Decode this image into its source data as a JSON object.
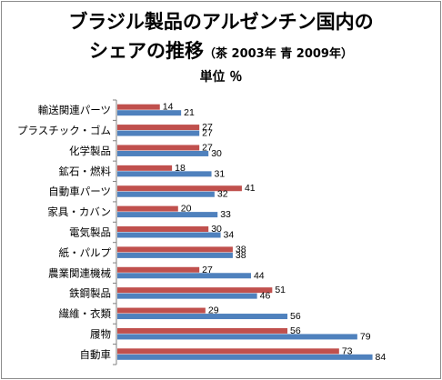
{
  "chart_data": {
    "type": "bar",
    "orientation": "horizontal",
    "title_line1": "ブラジル製品のアルゼンチン国内の",
    "title_line2": "シェアの推移",
    "title_note": "（茶  2003年  青  2009年）",
    "unit": "単位  ％",
    "categories": [
      "輸送関連パーツ",
      "プラスチック・ゴム",
      "化学製品",
      "鉱石・燃料",
      "自動車パーツ",
      "家具・カバン",
      "電気製品",
      "紙・パルプ",
      "農業関連機械",
      "鉄鋼製品",
      "繊維・衣類",
      "履物",
      "自動車"
    ],
    "series": [
      {
        "name": "2003年",
        "color": "#c0504d",
        "values": [
          14,
          27,
          27,
          18,
          41,
          20,
          30,
          38,
          27,
          51,
          29,
          56,
          73
        ]
      },
      {
        "name": "2009年",
        "color": "#4f81bd",
        "values": [
          21,
          27,
          30,
          31,
          32,
          33,
          34,
          38,
          44,
          46,
          56,
          79,
          84
        ]
      }
    ],
    "xlim": [
      0,
      100
    ],
    "grid": false,
    "legend": "none"
  }
}
